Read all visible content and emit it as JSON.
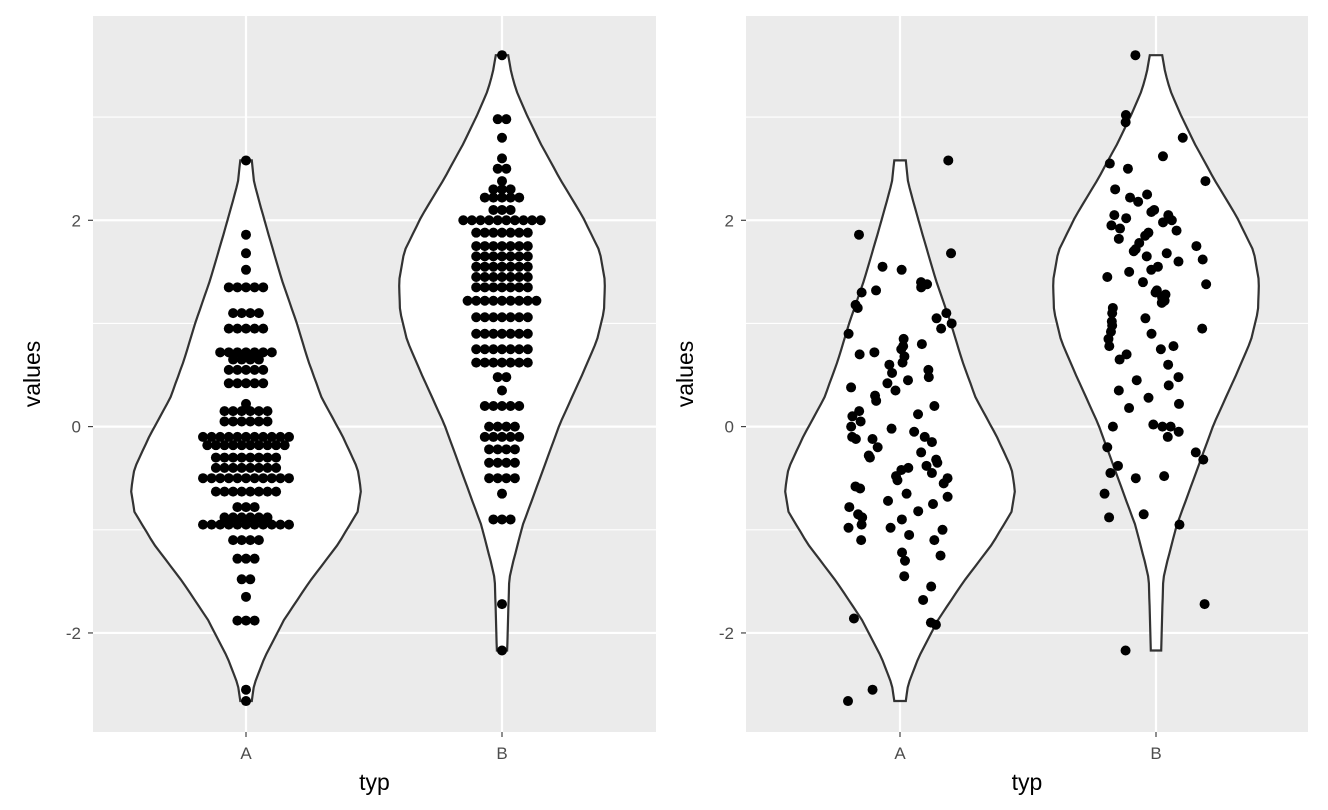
{
  "chart_data": [
    {
      "type": "violin",
      "point_style": "dotplot",
      "xlabel": "typ",
      "ylabel": "values",
      "categories": [
        "A",
        "B"
      ],
      "yticks": [
        -2,
        0,
        2
      ],
      "ytick_labels": [
        "-2",
        "0",
        "2"
      ],
      "ylim": [
        -2.96,
        3.98
      ],
      "grid": true,
      "violin_ranges": [
        [
          -2.66,
          2.58
        ],
        [
          -2.17,
          3.6
        ]
      ],
      "series": [
        {
          "values": [
            -2.66,
            -2.55,
            -1.88,
            -1.88,
            -1.88,
            -1.65,
            -1.48,
            -1.48,
            -1.28,
            -1.28,
            -1.28,
            -1.1,
            -1.1,
            -1.1,
            -1.1,
            -0.95,
            -0.95,
            -0.95,
            -0.95,
            -0.95,
            -0.95,
            -0.95,
            -0.95,
            -0.95,
            -0.95,
            -0.95,
            -0.88,
            -0.88,
            -0.88,
            -0.88,
            -0.88,
            -0.88,
            -0.78,
            -0.78,
            -0.78,
            -0.63,
            -0.63,
            -0.63,
            -0.63,
            -0.63,
            -0.63,
            -0.63,
            -0.63,
            -0.5,
            -0.5,
            -0.5,
            -0.5,
            -0.5,
            -0.5,
            -0.5,
            -0.5,
            -0.5,
            -0.5,
            -0.5,
            -0.4,
            -0.4,
            -0.4,
            -0.4,
            -0.4,
            -0.4,
            -0.4,
            -0.4,
            -0.3,
            -0.3,
            -0.3,
            -0.3,
            -0.3,
            -0.3,
            -0.3,
            -0.3,
            -0.18,
            -0.18,
            -0.18,
            -0.18,
            -0.18,
            -0.18,
            -0.18,
            -0.18,
            -0.18,
            -0.18,
            -0.1,
            -0.1,
            -0.1,
            -0.1,
            -0.1,
            -0.1,
            -0.1,
            -0.1,
            -0.1,
            -0.1,
            -0.1,
            0.05,
            0.05,
            0.05,
            0.05,
            0.05,
            0.05,
            0.15,
            0.15,
            0.15,
            0.15,
            0.15,
            0.15,
            0.22,
            0.42,
            0.42,
            0.42,
            0.42,
            0.42,
            0.55,
            0.55,
            0.55,
            0.55,
            0.55,
            0.65,
            0.65,
            0.65,
            0.65,
            0.72,
            0.72,
            0.72,
            0.72,
            0.72,
            0.72,
            0.72,
            0.95,
            0.95,
            0.95,
            0.95,
            0.95,
            1.1,
            1.1,
            1.1,
            1.1,
            1.35,
            1.35,
            1.35,
            1.35,
            1.35,
            1.52,
            1.68,
            1.86,
            2.58
          ]
        },
        {
          "values": [
            -2.17,
            -1.72,
            -0.9,
            -0.9,
            -0.9,
            -0.65,
            -0.5,
            -0.5,
            -0.5,
            -0.5,
            -0.35,
            -0.35,
            -0.35,
            -0.35,
            -0.22,
            -0.22,
            -0.22,
            -0.22,
            -0.1,
            -0.1,
            -0.1,
            -0.1,
            -0.1,
            0.0,
            0.0,
            0.0,
            0.0,
            0.2,
            0.2,
            0.2,
            0.2,
            0.2,
            0.35,
            0.48,
            0.48,
            0.62,
            0.62,
            0.62,
            0.62,
            0.62,
            0.62,
            0.62,
            0.75,
            0.75,
            0.75,
            0.75,
            0.75,
            0.75,
            0.75,
            0.9,
            0.9,
            0.9,
            0.9,
            0.9,
            0.9,
            0.9,
            1.06,
            1.06,
            1.06,
            1.06,
            1.06,
            1.06,
            1.06,
            1.22,
            1.22,
            1.22,
            1.22,
            1.22,
            1.22,
            1.22,
            1.22,
            1.22,
            1.35,
            1.35,
            1.35,
            1.35,
            1.35,
            1.35,
            1.35,
            1.45,
            1.45,
            1.45,
            1.45,
            1.45,
            1.45,
            1.45,
            1.55,
            1.55,
            1.55,
            1.55,
            1.55,
            1.55,
            1.55,
            1.65,
            1.65,
            1.65,
            1.65,
            1.65,
            1.65,
            1.65,
            1.75,
            1.75,
            1.75,
            1.75,
            1.75,
            1.75,
            1.75,
            1.88,
            1.88,
            1.88,
            1.88,
            1.88,
            1.88,
            1.88,
            2.0,
            2.0,
            2.0,
            2.0,
            2.0,
            2.0,
            2.0,
            2.0,
            2.0,
            2.0,
            2.1,
            2.1,
            2.1,
            2.22,
            2.22,
            2.22,
            2.22,
            2.22,
            2.3,
            2.3,
            2.3,
            2.38,
            2.5,
            2.5,
            2.6,
            2.8,
            2.98,
            2.98,
            3.6
          ]
        }
      ]
    },
    {
      "type": "violin",
      "point_style": "jitter",
      "xlabel": "typ",
      "ylabel": "values",
      "categories": [
        "A",
        "B"
      ],
      "yticks": [
        -2,
        0,
        2
      ],
      "ytick_labels": [
        "-2",
        "0",
        "2"
      ],
      "ylim": [
        -2.96,
        3.98
      ],
      "grid": true,
      "violin_ranges": [
        [
          -2.66,
          2.58
        ],
        [
          -2.17,
          3.6
        ]
      ],
      "series": [
        {
          "values": [
            -2.66,
            -2.55,
            -1.92,
            -1.9,
            -1.86,
            -1.68,
            -1.55,
            -1.45,
            -1.3,
            -1.25,
            -1.22,
            -1.1,
            -1.1,
            -1.05,
            -1.0,
            -0.98,
            -0.98,
            -0.95,
            -0.9,
            -0.88,
            -0.85,
            -0.82,
            -0.78,
            -0.75,
            -0.72,
            -0.68,
            -0.65,
            -0.6,
            -0.58,
            -0.55,
            -0.52,
            -0.5,
            -0.48,
            -0.45,
            -0.42,
            -0.4,
            -0.38,
            -0.35,
            -0.32,
            -0.3,
            -0.28,
            -0.25,
            -0.2,
            -0.15,
            -0.12,
            -0.12,
            -0.1,
            -0.1,
            -0.05,
            -0.02,
            0.0,
            0.05,
            0.1,
            0.12,
            0.15,
            0.2,
            0.25,
            0.3,
            0.35,
            0.38,
            0.42,
            0.45,
            0.48,
            0.52,
            0.55,
            0.6,
            0.62,
            0.68,
            0.7,
            0.72,
            0.75,
            0.78,
            0.8,
            0.85,
            0.9,
            0.95,
            1.0,
            1.05,
            1.1,
            1.15,
            1.18,
            1.3,
            1.32,
            1.35,
            1.38,
            1.4,
            1.52,
            1.55,
            1.68,
            1.86,
            2.58
          ]
        },
        {
          "values": [
            -2.17,
            -1.72,
            -0.95,
            -0.88,
            -0.85,
            -0.65,
            -0.5,
            -0.48,
            -0.45,
            -0.38,
            -0.32,
            -0.25,
            -0.2,
            -0.1,
            -0.05,
            0.0,
            0.0,
            0.0,
            0.02,
            0.18,
            0.22,
            0.28,
            0.35,
            0.4,
            0.45,
            0.48,
            0.6,
            0.65,
            0.7,
            0.75,
            0.78,
            0.78,
            0.85,
            0.9,
            0.92,
            0.95,
            0.98,
            1.02,
            1.05,
            1.1,
            1.15,
            1.2,
            1.22,
            1.25,
            1.28,
            1.3,
            1.32,
            1.38,
            1.4,
            1.45,
            1.5,
            1.52,
            1.55,
            1.6,
            1.62,
            1.65,
            1.68,
            1.7,
            1.72,
            1.75,
            1.78,
            1.82,
            1.85,
            1.88,
            1.9,
            1.92,
            1.95,
            1.98,
            2.0,
            2.02,
            2.05,
            2.05,
            2.08,
            2.1,
            2.18,
            2.22,
            2.25,
            2.3,
            2.38,
            2.5,
            2.55,
            2.62,
            2.8,
            2.95,
            3.02,
            3.6
          ]
        }
      ]
    }
  ]
}
